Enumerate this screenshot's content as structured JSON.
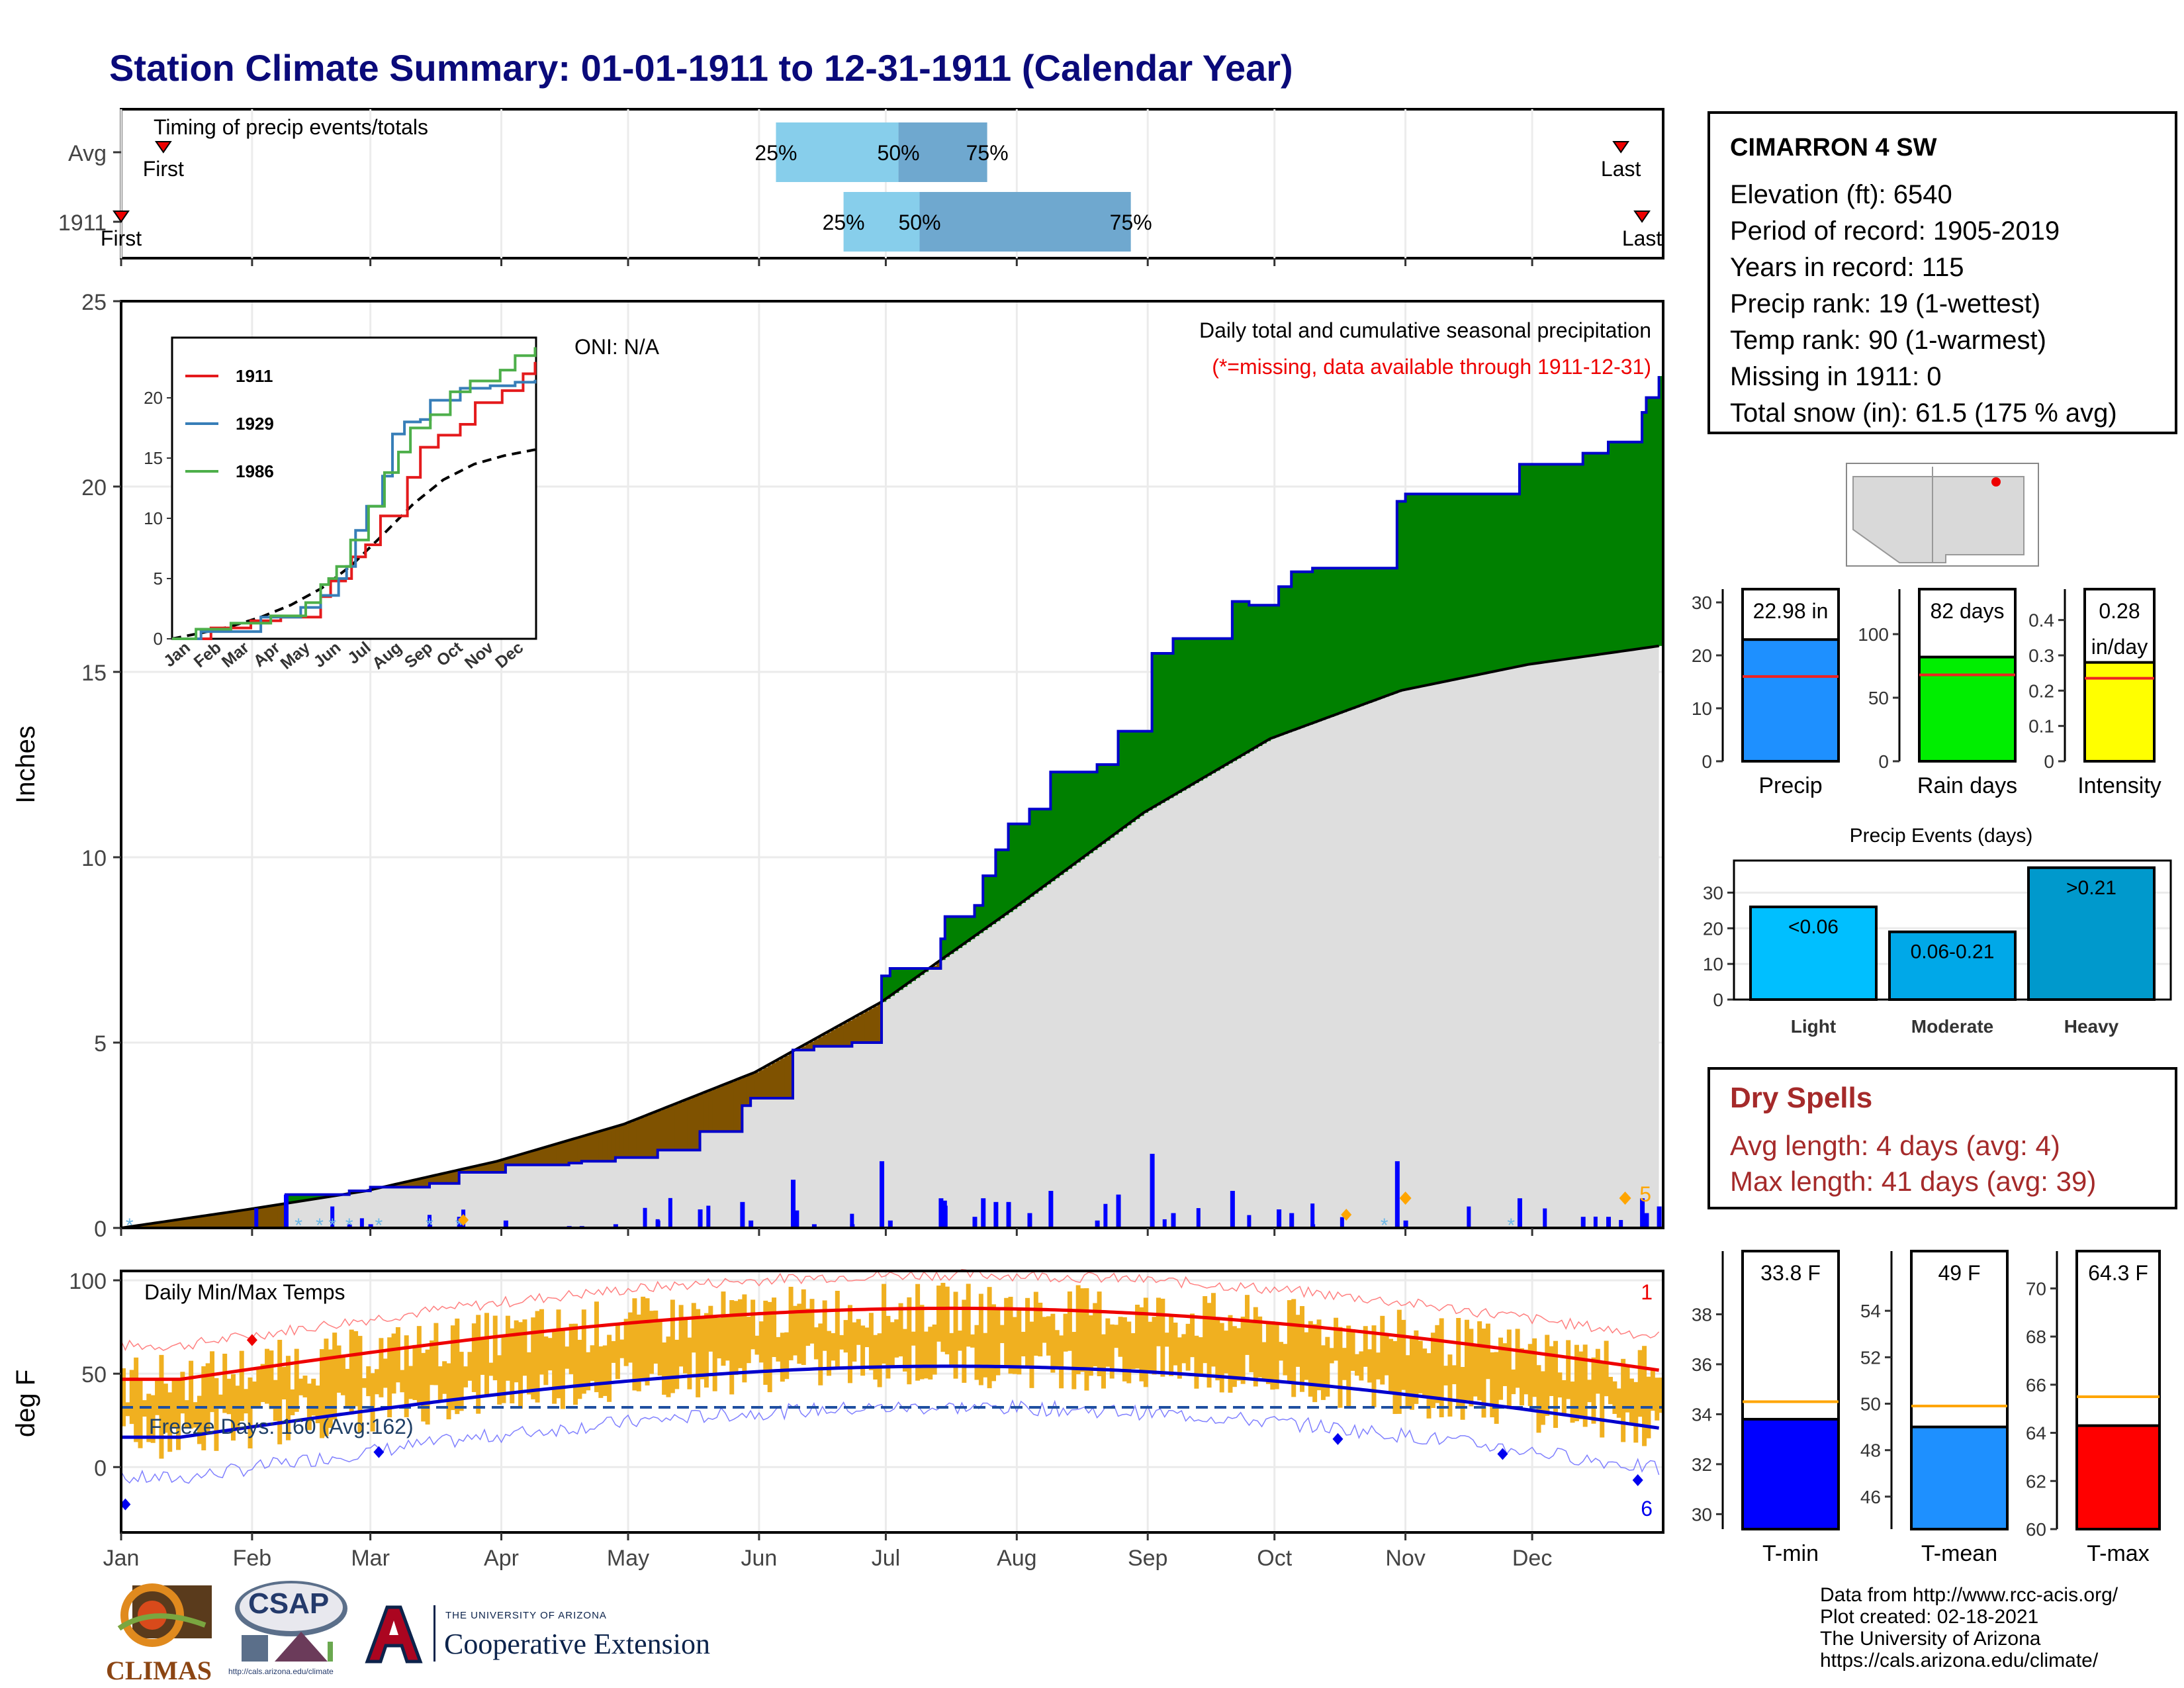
{
  "page": {
    "title": "Station Climate Summary: 01-01-1911 to 12-31-1911 (Calendar Year)"
  },
  "station": {
    "name": "CIMARRON 4 SW",
    "elevation": "Elevation (ft): 6540",
    "period": "Period of record: 1905-2019",
    "years": "Years in record: 115",
    "precip_rank": "Precip rank: 19 (1-wettest)",
    "temp_rank": "Temp rank: 90 (1-warmest)",
    "missing": "Missing in 1911: 0",
    "snow": "Total snow (in): 61.5 (175 % avg)"
  },
  "dry_spells": {
    "heading": "Dry Spells",
    "avg": "Avg length: 4 days (avg: 4)",
    "max": "Max length: 41 days (avg: 39)"
  },
  "credits": {
    "line1": "Data from http://www.rcc-acis.org/",
    "line2": "Plot created: 02-18-2021",
    "line3": "The University of Arizona",
    "line4": "https://cals.arizona.edu/climate/"
  },
  "logos": {
    "climas": "CLIMAS",
    "csap": "CSAP",
    "csap_url": "http://cals.arizona.edu/climate",
    "ua_small": "THE UNIVERSITY OF ARIZONA",
    "ua_big": "Cooperative Extension"
  },
  "colors": {
    "green_surplus": "#008000",
    "brown_deficit": "#7f5200",
    "normal_gray": "#dedede",
    "cumulative_line": "#0000cc",
    "temp_bars": "#f0b020",
    "tmax_mean": "#ee0000",
    "tmin_mean": "#0000cc",
    "light_blue": "#87ceeb",
    "mid_blue": "#6fa8cf"
  },
  "chart_data": [
    {
      "type": "bar",
      "title": "Timing of precip events/totals",
      "rows": [
        {
          "label": "Avg",
          "first": "Jan 11",
          "q25": "Jun 5",
          "q50": "Jul 4",
          "q75": "Jul 25",
          "last": "Dec 22",
          "first_label": "First",
          "last_label": "Last"
        },
        {
          "label": "1911",
          "first": "Jan 1",
          "q25": "Jun 21",
          "q50": "Jul 9",
          "q75": "Aug 28",
          "last": "Dec 27",
          "first_label": "First",
          "last_label": "Last"
        }
      ],
      "quantile_labels": [
        "25%",
        "50%",
        "75%"
      ]
    },
    {
      "type": "area",
      "title": "Daily total and cumulative seasonal precipitation",
      "subtitle": "(*=missing, data available through 1911-12-31)",
      "annotation": "ONI: N/A",
      "ylabel": "Inches",
      "ylim": [
        0,
        25
      ],
      "yticks": [
        0,
        5,
        10,
        15,
        20,
        25
      ],
      "months": [
        "Jan",
        "Feb",
        "Mar",
        "Apr",
        "May",
        "Jun",
        "Jul",
        "Aug",
        "Sep",
        "Oct",
        "Nov",
        "Dec"
      ],
      "series": [
        {
          "name": "cumulative_1911",
          "x": [
            1,
            20,
            40,
            55,
            60,
            74,
            81,
            92,
            107,
            110,
            118,
            128,
            138,
            148,
            150,
            160,
            165,
            170,
            174,
            175,
            181,
            183,
            189,
            195,
            196,
            203,
            205,
            208,
            211,
            216,
            221,
            232,
            237,
            245,
            250,
            253,
            264,
            267,
            268,
            275,
            278,
            283,
            287,
            292,
            303,
            305,
            332,
            347,
            353,
            361,
            362,
            365
          ],
          "y": [
            0,
            0,
            0.9,
            1.0,
            1.1,
            1.2,
            1.5,
            1.7,
            1.75,
            1.8,
            1.9,
            2.1,
            2.6,
            3.3,
            3.5,
            4.8,
            4.9,
            4.9,
            5.0,
            5.0,
            6.8,
            7.0,
            7.0,
            7.8,
            8.4,
            8.7,
            9.5,
            10.2,
            10.9,
            11.3,
            12.3,
            12.5,
            13.4,
            15.5,
            15.9,
            15.9,
            16.9,
            16.9,
            16.8,
            17.3,
            17.7,
            17.8,
            17.8,
            17.8,
            19.6,
            19.8,
            20.6,
            20.9,
            21.2,
            22.0,
            22.4,
            22.98
          ]
        },
        {
          "name": "normal",
          "x": [
            1,
            31,
            59,
            90,
            120,
            151,
            181,
            212,
            243,
            273,
            304,
            334,
            365
          ],
          "y": [
            0,
            0.5,
            1.0,
            1.8,
            2.8,
            4.2,
            6.1,
            8.6,
            11.2,
            13.2,
            14.5,
            15.2,
            15.7
          ]
        }
      ],
      "daily_precip_markers": [
        {
          "day": 305,
          "label": ""
        },
        {
          "day": 357,
          "label": "5"
        }
      ]
    },
    {
      "type": "line",
      "title": "inset cumulative precip",
      "ylim": [
        0,
        25
      ],
      "yticks": [
        0,
        5,
        10,
        15,
        20
      ],
      "months": [
        "Jan",
        "Feb",
        "Mar",
        "Apr",
        "May",
        "Jun",
        "Jul",
        "Aug",
        "Sep",
        "Oct",
        "Nov",
        "Dec"
      ],
      "series": [
        {
          "name": "1911",
          "color": "#e41a1c"
        },
        {
          "name": "1929",
          "color": "#377eb8"
        },
        {
          "name": "1986",
          "color": "#4daf4a"
        }
      ]
    },
    {
      "type": "line",
      "title": "Daily Min/Max Temps",
      "ylabel": "deg F",
      "ylim": [
        -35,
        105
      ],
      "yticks": [
        0,
        50,
        100
      ],
      "annotation_freeze": "Freeze Days: 160 (Avg:162)",
      "tmax_record_count": "1",
      "tmin_record_count": "6",
      "months": [
        "Jan",
        "Feb",
        "Mar",
        "Apr",
        "May",
        "Jun",
        "Jul",
        "Aug",
        "Sep",
        "Oct",
        "Nov",
        "Dec"
      ]
    },
    {
      "type": "bar",
      "title": "Precip summary",
      "panels": [
        {
          "label": "Precip",
          "value": 22.98,
          "value_label": "22.98 in",
          "avg": 16.0,
          "ylim": [
            0,
            30
          ],
          "yticks": [
            0,
            10,
            20,
            30
          ],
          "color": "#1e90ff"
        },
        {
          "label": "Rain days",
          "value": 82,
          "value_label": "82 days",
          "avg": 68,
          "ylim": [
            0,
            125
          ],
          "yticks": [
            0,
            50,
            100
          ],
          "color": "#00ee00"
        },
        {
          "label": "Intensity",
          "value": 0.28,
          "value_label": "0.28 in/day",
          "avg": 0.235,
          "ylim": [
            0,
            0.45
          ],
          "yticks": [
            0.0,
            0.1,
            0.2,
            0.3,
            0.4
          ],
          "color": "#ffff00"
        }
      ]
    },
    {
      "type": "bar",
      "title": "Precip Events (days)",
      "categories": [
        "Light",
        "Moderate",
        "Heavy"
      ],
      "bar_labels": [
        "<0.06",
        "0.06-0.21",
        ">0.21"
      ],
      "values": [
        26,
        19,
        37
      ],
      "ylim": [
        0,
        39
      ],
      "yticks": [
        0,
        10,
        20,
        30
      ],
      "colors": [
        "#00bfff",
        "#00a8e8",
        "#0099cc"
      ]
    },
    {
      "type": "bar",
      "title": "Temperature summary",
      "panels": [
        {
          "label": "T-min",
          "value": 33.8,
          "value_label": "33.8 F",
          "avg": 34.5,
          "ylim": [
            29.4,
            40
          ],
          "yticks": [
            30,
            32,
            34,
            36,
            38
          ],
          "color": "#0000ff"
        },
        {
          "label": "T-mean",
          "value": 49.0,
          "value_label": "49 F",
          "avg": 49.9,
          "ylim": [
            44.6,
            56
          ],
          "yticks": [
            46,
            48,
            50,
            52,
            54
          ],
          "color": "#1e90ff"
        },
        {
          "label": "T-max",
          "value": 64.3,
          "value_label": "64.3 F",
          "avg": 65.5,
          "ylim": [
            60,
            71
          ],
          "yticks": [
            60,
            62,
            64,
            66,
            68,
            70
          ],
          "color": "#ff0000"
        }
      ]
    }
  ]
}
